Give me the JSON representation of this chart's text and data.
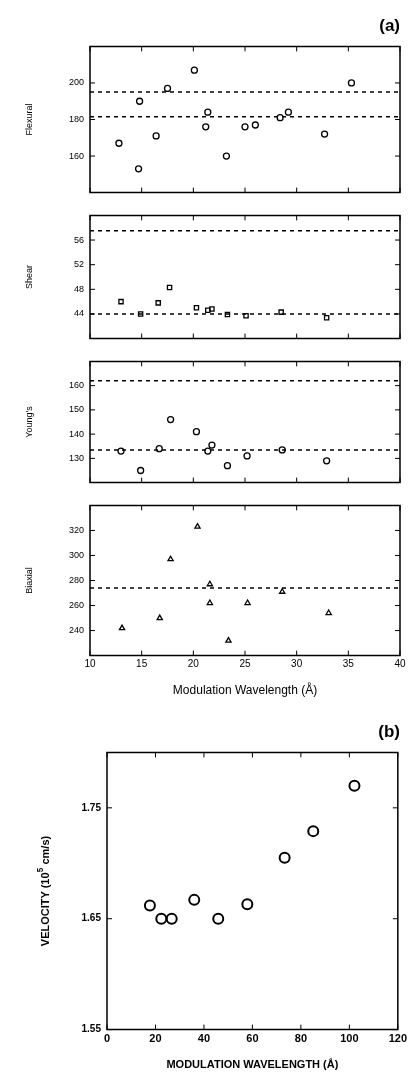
{
  "chart_data": [
    {
      "type": "scatter",
      "title": "(a)",
      "ylabel": "Flexural",
      "xlim": [
        10,
        40
      ],
      "xticks": [
        10,
        15,
        20,
        25,
        30,
        35,
        40
      ],
      "ylim": [
        140,
        220
      ],
      "yticks": [
        160,
        180,
        200
      ],
      "tick_labels": "y",
      "marker": "circle",
      "x": [
        12.8,
        14.7,
        14.8,
        16.4,
        17.5,
        20.1,
        21.2,
        21.4,
        23.2,
        25.0,
        26.0,
        28.4,
        29.2,
        32.7,
        35.3
      ],
      "series": [
        {
          "color": "#000000",
          "values": [
            167,
            153,
            190,
            171,
            197,
            207,
            176,
            184,
            160,
            176,
            177,
            181,
            184,
            172,
            200
          ]
        }
      ],
      "ref_lines": [
        {
          "axis": "y",
          "value": 195,
          "color": "#000000",
          "line_style": "dashed"
        },
        {
          "axis": "y",
          "value": 181.5,
          "color": "#000000",
          "line_style": "dashed"
        }
      ]
    },
    {
      "type": "scatter",
      "ylabel": "Shear",
      "xlim": [
        10,
        40
      ],
      "xticks": [
        10,
        15,
        20,
        25,
        30,
        35,
        40
      ],
      "ylim": [
        40,
        60
      ],
      "yticks": [
        44,
        48,
        52,
        56
      ],
      "tick_labels": "y",
      "marker": "square",
      "x": [
        13.0,
        14.9,
        16.6,
        17.7,
        20.3,
        21.4,
        21.8,
        23.3,
        25.1,
        28.5,
        32.9
      ],
      "series": [
        {
          "color": "#000000",
          "values": [
            46.0,
            44.0,
            45.8,
            48.3,
            45.0,
            44.6,
            44.8,
            43.9,
            43.7,
            44.3,
            43.4
          ]
        }
      ],
      "ref_lines": [
        {
          "axis": "y",
          "value": 57.5,
          "color": "#000000",
          "line_style": "dashed"
        },
        {
          "axis": "y",
          "value": 44.0,
          "color": "#000000",
          "line_style": "dashed"
        }
      ]
    },
    {
      "type": "scatter",
      "ylabel": "Young's",
      "xlim": [
        10,
        40
      ],
      "xticks": [
        10,
        15,
        20,
        25,
        30,
        35,
        40
      ],
      "ylim": [
        120,
        170
      ],
      "yticks": [
        130,
        140,
        150,
        160
      ],
      "tick_labels": "y",
      "marker": "circle",
      "x": [
        13.0,
        14.9,
        16.7,
        17.8,
        20.3,
        21.4,
        21.8,
        23.3,
        25.2,
        28.6,
        32.9
      ],
      "series": [
        {
          "color": "#000000",
          "values": [
            133,
            125,
            134,
            146,
            141,
            133,
            135.5,
            127,
            131,
            133.5,
            129
          ]
        }
      ],
      "ref_lines": [
        {
          "axis": "y",
          "value": 162,
          "color": "#000000",
          "line_style": "dashed"
        },
        {
          "axis": "y",
          "value": 133.5,
          "color": "#000000",
          "line_style": "dashed"
        }
      ]
    },
    {
      "type": "scatter",
      "ylabel": "Biaxial",
      "xlabel": "Modulation Wavelength (Å)",
      "xlim": [
        10,
        40
      ],
      "xticks": [
        10,
        15,
        20,
        25,
        30,
        35,
        40
      ],
      "ylim": [
        220,
        340
      ],
      "yticks": [
        240,
        260,
        280,
        300,
        320
      ],
      "marker": "triangle",
      "x": [
        13.1,
        16.75,
        17.8,
        20.4,
        21.6,
        21.6,
        23.4,
        25.25,
        28.6,
        33.1
      ],
      "series": [
        {
          "color": "#000000",
          "values": [
            242,
            250,
            297,
            323,
            277,
            262,
            232,
            262,
            271,
            254
          ]
        }
      ],
      "ref_lines": [
        {
          "axis": "y",
          "value": 274,
          "color": "#000000",
          "line_style": "dashed"
        }
      ]
    },
    {
      "type": "scatter",
      "title": "(b)",
      "ylabel": "VELOCITY (10$^{5}$ cm/s)",
      "xlabel": "MODULATION WAVELENGTH (Å)",
      "xlim": [
        0,
        120
      ],
      "xticks": [
        0,
        20,
        40,
        60,
        80,
        100,
        120
      ],
      "ylim": [
        1.55,
        1.8
      ],
      "yticks": [
        1.55,
        1.65,
        1.75
      ],
      "marker": "circle",
      "x": [
        17.7,
        22.4,
        26.7,
        36.0,
        45.9,
        57.9,
        73.3,
        85.1,
        102.1
      ],
      "series": [
        {
          "color": "#000000",
          "values": [
            1.662,
            1.65,
            1.65,
            1.667,
            1.65,
            1.663,
            1.705,
            1.729,
            1.77
          ]
        }
      ]
    }
  ]
}
